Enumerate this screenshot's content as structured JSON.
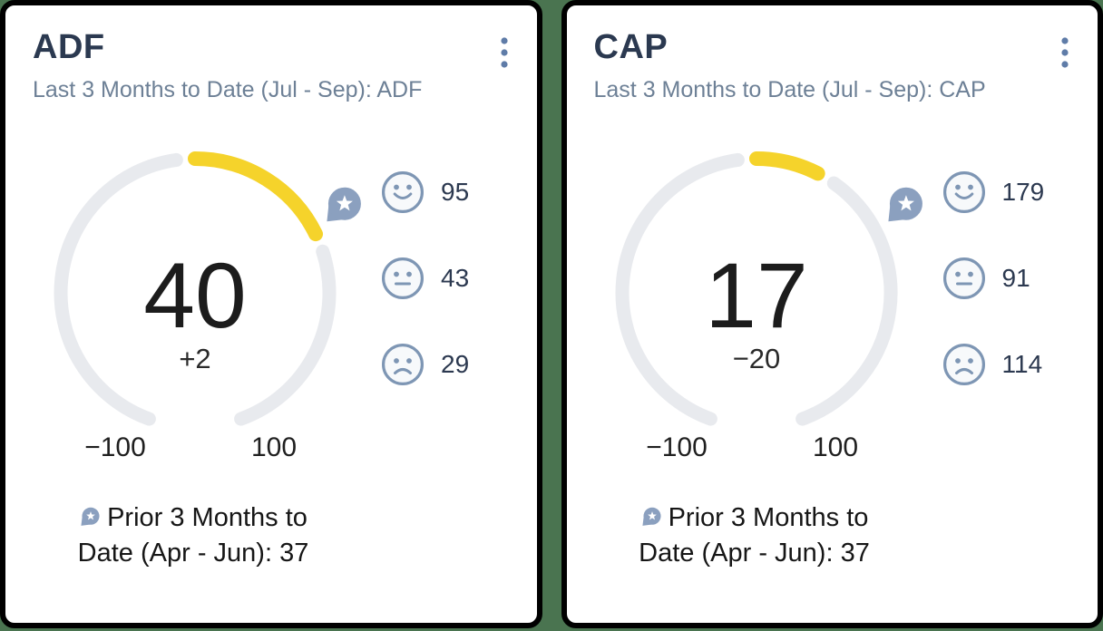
{
  "colors": {
    "page_background": "#4a7450",
    "card_border": "#000000",
    "card_background": "#ffffff",
    "title": "#2b3950",
    "subtitle": "#6d8096",
    "gauge_track": "#e8eaee",
    "gauge_value_arc": "#f5d32b",
    "prior_marker": "#8ba0bf",
    "sentiment_icon": "#7e96b4",
    "kebab_dots": "#5f7ca8"
  },
  "cards": [
    {
      "title": "ADF",
      "subtitle": "Last 3 Months to Date (Jul - Sep): ADF",
      "gauge": {
        "value": 40,
        "delta": "+2",
        "min": -100,
        "max": 100,
        "min_label": "−100",
        "max_label": "100",
        "prior_value": 37
      },
      "sentiments": [
        {
          "icon": "happy-face-icon",
          "count": 95
        },
        {
          "icon": "neutral-face-icon",
          "count": 43
        },
        {
          "icon": "sad-face-icon",
          "count": 29
        }
      ],
      "prior_line1": "Prior 3 Months to",
      "prior_line2": "Date (Apr - Jun): 37"
    },
    {
      "title": "CAP",
      "subtitle": "Last 3 Months to Date (Jul - Sep): CAP",
      "gauge": {
        "value": 17,
        "delta": "−20",
        "min": -100,
        "max": 100,
        "min_label": "−100",
        "max_label": "100",
        "prior_value": 37
      },
      "sentiments": [
        {
          "icon": "happy-face-icon",
          "count": 179
        },
        {
          "icon": "neutral-face-icon",
          "count": 91
        },
        {
          "icon": "sad-face-icon",
          "count": 114
        }
      ],
      "prior_line1": "Prior 3 Months to",
      "prior_line2": "Date (Apr - Jun): 37"
    }
  ],
  "chart_data": [
    {
      "type": "gauge",
      "title": "ADF",
      "subtitle": "Last 3 Months to Date (Jul - Sep): ADF",
      "value": 40,
      "delta": "+2",
      "axis_min": -100,
      "axis_max": 100,
      "prior_value": 37,
      "prior_label": "Prior 3 Months to Date (Apr - Jun): 37",
      "sentiment_counts": {
        "happy": 95,
        "neutral": 43,
        "sad": 29
      }
    },
    {
      "type": "gauge",
      "title": "CAP",
      "subtitle": "Last 3 Months to Date (Jul - Sep): CAP",
      "value": 17,
      "delta": "−20",
      "axis_min": -100,
      "axis_max": 100,
      "prior_value": 37,
      "prior_label": "Prior 3 Months to Date (Apr - Jun): 37",
      "sentiment_counts": {
        "happy": 179,
        "neutral": 91,
        "sad": 114
      }
    }
  ]
}
